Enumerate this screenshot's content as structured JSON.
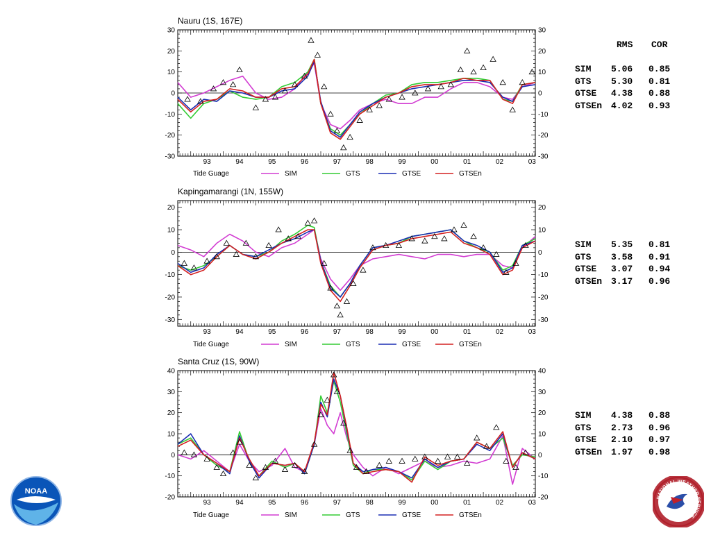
{
  "colors": {
    "SIM": "#d23cd2",
    "GTS": "#33cc33",
    "GTSE": "#1a2db3",
    "GTSEn": "#d42020",
    "tide": "#000000"
  },
  "legend": [
    {
      "key": "tide",
      "label": "Tide Guage"
    },
    {
      "key": "SIM",
      "label": "SIM"
    },
    {
      "key": "GTS",
      "label": "GTS"
    },
    {
      "key": "GTSE",
      "label": "GTSE"
    },
    {
      "key": "GTSEn",
      "label": "GTSEn"
    }
  ],
  "stats_header": {
    "rms": "RMS",
    "cor": "COR"
  },
  "chart_data": [
    {
      "type": "line",
      "title": "Nauru (1S, 167E)",
      "xlim": [
        1992.6,
        2003.6
      ],
      "ylim": [
        -30,
        30
      ],
      "yticks": [
        -30,
        -20,
        -10,
        0,
        10,
        20,
        30
      ],
      "xtick_labels": [
        "93",
        "94",
        "95",
        "96",
        "97",
        "98",
        "99",
        "00",
        "01",
        "02",
        "03"
      ],
      "x": [
        1992.6,
        1993.0,
        1993.4,
        1993.8,
        1994.2,
        1994.6,
        1995.0,
        1995.4,
        1995.8,
        1996.2,
        1996.6,
        1996.8,
        1997.0,
        1997.3,
        1997.6,
        1997.9,
        1998.2,
        1998.6,
        1999.0,
        1999.4,
        1999.8,
        2000.2,
        2000.6,
        2001.0,
        2001.4,
        2001.8,
        2002.2,
        2002.6,
        2002.9,
        2003.2,
        2003.6
      ],
      "series": [
        {
          "name": "SIM",
          "values": [
            5,
            -2,
            0,
            3,
            6,
            8,
            0,
            -3,
            -2,
            2,
            10,
            14,
            -5,
            -15,
            -17,
            -13,
            -8,
            -5,
            -3,
            -5,
            -5,
            -2,
            -2,
            2,
            5,
            5,
            3,
            -2,
            -3,
            3,
            5
          ]
        },
        {
          "name": "GTS",
          "values": [
            -5,
            -12,
            -5,
            -3,
            1,
            -2,
            -3,
            -2,
            3,
            5,
            10,
            16,
            -5,
            -17,
            -20,
            -15,
            -10,
            -5,
            -1,
            0,
            4,
            5,
            5,
            6,
            7,
            7,
            6,
            -3,
            -4,
            4,
            5
          ]
        },
        {
          "name": "GTSE",
          "values": [
            -2,
            -8,
            -3,
            -4,
            1,
            0,
            -2,
            -2,
            1,
            2,
            8,
            15,
            -4,
            -18,
            -21,
            -15,
            -9,
            -5,
            -2,
            0,
            2,
            3,
            4,
            5,
            6,
            6,
            5,
            -2,
            -4,
            3,
            4
          ]
        },
        {
          "name": "GTSEn",
          "values": [
            -3,
            -9,
            -4,
            -3,
            2,
            1,
            -2,
            -2,
            2,
            3,
            9,
            16,
            -5,
            -19,
            -22,
            -16,
            -10,
            -6,
            -2,
            0,
            3,
            4,
            4,
            5,
            7,
            6,
            6,
            -3,
            -5,
            4,
            5
          ]
        }
      ],
      "tide_gauge": {
        "x": [
          1992.9,
          1993.3,
          1993.7,
          1994.0,
          1994.3,
          1994.5,
          1995.0,
          1995.3,
          1995.6,
          1995.9,
          1996.2,
          1996.5,
          1996.7,
          1996.9,
          1997.1,
          1997.3,
          1997.5,
          1997.7,
          1997.9,
          1998.2,
          1998.5,
          1998.8,
          1999.1,
          1999.5,
          1999.9,
          2000.3,
          2000.7,
          2001.0,
          2001.3,
          2001.5,
          2001.7,
          2002.0,
          2002.3,
          2002.6,
          2002.9,
          2003.2,
          2003.5
        ],
        "values": [
          -3,
          -4,
          2,
          5,
          4,
          11,
          -7,
          -3,
          -2,
          1,
          4,
          8,
          25,
          18,
          3,
          -10,
          -18,
          -26,
          -21,
          -13,
          -8,
          -6,
          -3,
          -2,
          0,
          2,
          3,
          4,
          11,
          20,
          10,
          12,
          16,
          5,
          -8,
          5,
          10
        ]
      },
      "stats": [
        {
          "name": "SIM",
          "rms": "5.06",
          "cor": "0.85"
        },
        {
          "name": "GTS",
          "rms": "5.30",
          "cor": "0.81"
        },
        {
          "name": "GTSE",
          "rms": "4.38",
          "cor": "0.88"
        },
        {
          "name": "GTSEn",
          "rms": "4.02",
          "cor": "0.93"
        }
      ]
    },
    {
      "type": "line",
      "title": "Kapingamarangi (1N, 155W)",
      "xlim": [
        1992.6,
        2003.6
      ],
      "ylim": [
        -33,
        23
      ],
      "yticks": [
        -30,
        -20,
        -10,
        0,
        10,
        20
      ],
      "xtick_labels": [
        "93",
        "94",
        "95",
        "96",
        "97",
        "98",
        "99",
        "00",
        "01",
        "02",
        "03"
      ],
      "x": [
        1992.6,
        1993.0,
        1993.4,
        1993.8,
        1994.2,
        1994.6,
        1995.0,
        1995.4,
        1995.8,
        1996.2,
        1996.6,
        1996.8,
        1997.0,
        1997.3,
        1997.6,
        1997.9,
        1998.2,
        1998.6,
        1999.0,
        1999.4,
        1999.8,
        2000.2,
        2000.6,
        2001.0,
        2001.4,
        2001.8,
        2002.2,
        2002.6,
        2002.9,
        2003.2,
        2003.6
      ],
      "series": [
        {
          "name": "SIM",
          "values": [
            3,
            1,
            -2,
            4,
            8,
            5,
            0,
            -2,
            2,
            4,
            8,
            10,
            -3,
            -12,
            -17,
            -12,
            -6,
            -3,
            -2,
            -1,
            -2,
            -3,
            -1,
            -1,
            -2,
            -1,
            -1,
            -6,
            -7,
            2,
            7
          ]
        },
        {
          "name": "GTS",
          "values": [
            -6,
            -8,
            -6,
            -2,
            3,
            -1,
            -2,
            0,
            5,
            8,
            12,
            11,
            -4,
            -15,
            -20,
            -14,
            -6,
            2,
            3,
            4,
            7,
            8,
            9,
            10,
            5,
            2,
            0,
            -8,
            -6,
            3,
            6
          ]
        },
        {
          "name": "GTSE",
          "values": [
            -5,
            -9,
            -7,
            -1,
            3,
            -1,
            -2,
            1,
            4,
            6,
            9,
            10,
            -4,
            -16,
            -20,
            -14,
            -6,
            2,
            3,
            5,
            7,
            8,
            9,
            10,
            5,
            3,
            0,
            -9,
            -7,
            3,
            5
          ]
        },
        {
          "name": "GTSEn",
          "values": [
            -6,
            -10,
            -8,
            -2,
            3,
            -1,
            -3,
            0,
            4,
            7,
            10,
            10,
            -5,
            -17,
            -22,
            -15,
            -7,
            1,
            3,
            4,
            6,
            7,
            8,
            9,
            4,
            2,
            -1,
            -10,
            -8,
            2,
            5
          ]
        }
      ],
      "tide_gauge": {
        "x": [
          1992.8,
          1993.1,
          1993.5,
          1993.8,
          1994.1,
          1994.4,
          1994.7,
          1995.0,
          1995.4,
          1995.7,
          1996.0,
          1996.3,
          1996.6,
          1996.8,
          1997.1,
          1997.3,
          1997.5,
          1997.6,
          1997.8,
          1998.0,
          1998.3,
          1998.6,
          1999.0,
          1999.4,
          1999.8,
          2000.2,
          2000.5,
          2000.8,
          2001.1,
          2001.4,
          2001.7,
          2002.0,
          2002.4,
          2002.7,
          2003.0,
          2003.3
        ],
        "values": [
          -5,
          -7,
          -4,
          -2,
          4,
          -1,
          4,
          -2,
          3,
          10,
          6,
          7,
          13,
          14,
          -5,
          -16,
          -24,
          -28,
          -22,
          -14,
          -8,
          2,
          3,
          3,
          6,
          5,
          7,
          6,
          10,
          12,
          7,
          2,
          -1,
          -9,
          -5,
          3
        ]
      },
      "stats": [
        {
          "name": "SIM",
          "rms": "5.35",
          "cor": "0.81"
        },
        {
          "name": "GTS",
          "rms": "3.58",
          "cor": "0.91"
        },
        {
          "name": "GTSE",
          "rms": "3.07",
          "cor": "0.94"
        },
        {
          "name": "GTSEn",
          "rms": "3.17",
          "cor": "0.96"
        }
      ]
    },
    {
      "type": "line",
      "title": "Santa Cruz (1S, 90W)",
      "xlim": [
        1992.6,
        2003.6
      ],
      "ylim": [
        -20,
        40
      ],
      "yticks": [
        -20,
        -10,
        0,
        10,
        20,
        30,
        40
      ],
      "xtick_labels": [
        "93",
        "94",
        "95",
        "96",
        "97",
        "98",
        "99",
        "00",
        "01",
        "02",
        "03"
      ],
      "x": [
        1992.6,
        1993.0,
        1993.4,
        1993.8,
        1994.2,
        1994.5,
        1994.8,
        1995.1,
        1995.5,
        1995.9,
        1996.2,
        1996.5,
        1996.8,
        1997.0,
        1997.2,
        1997.4,
        1997.6,
        1997.8,
        1998.0,
        1998.3,
        1998.6,
        1999.0,
        1999.4,
        1999.8,
        2000.2,
        2000.6,
        2001.0,
        2001.4,
        2001.8,
        2002.2,
        2002.6,
        2002.9,
        2003.2,
        2003.6
      ],
      "series": [
        {
          "name": "SIM",
          "values": [
            0,
            -2,
            2,
            -3,
            -8,
            5,
            -3,
            -8,
            -5,
            3,
            -6,
            -8,
            5,
            22,
            14,
            10,
            20,
            8,
            0,
            -6,
            -10,
            -6,
            -9,
            -6,
            -3,
            -6,
            -5,
            -3,
            -4,
            -2,
            9,
            -14,
            3,
            -2
          ]
        },
        {
          "name": "GTS",
          "values": [
            5,
            8,
            0,
            -5,
            -8,
            11,
            -3,
            -10,
            -3,
            -6,
            -4,
            -9,
            5,
            28,
            20,
            35,
            25,
            10,
            -5,
            -9,
            -7,
            -7,
            -8,
            -12,
            -3,
            -7,
            -3,
            -2,
            6,
            3,
            8,
            -5,
            0,
            -1
          ]
        },
        {
          "name": "GTSE",
          "values": [
            5,
            10,
            0,
            -4,
            -9,
            9,
            -3,
            -11,
            -4,
            -5,
            -4,
            -9,
            5,
            25,
            18,
            36,
            28,
            12,
            -4,
            -8,
            -7,
            -6,
            -8,
            -11,
            -2,
            -6,
            -3,
            -2,
            5,
            2,
            10,
            -6,
            1,
            -2
          ]
        },
        {
          "name": "GTSEn",
          "values": [
            4,
            7,
            0,
            -4,
            -8,
            8,
            -2,
            -10,
            -4,
            -5,
            -4,
            -8,
            6,
            24,
            19,
            39,
            28,
            13,
            -4,
            -9,
            -8,
            -7,
            -8,
            -13,
            -1,
            -5,
            -3,
            -2,
            6,
            3,
            11,
            -6,
            1,
            -2
          ]
        }
      ],
      "tide_gauge": {
        "x": [
          1992.8,
          1993.1,
          1993.5,
          1993.8,
          1994.0,
          1994.3,
          1994.5,
          1994.8,
          1995.0,
          1995.3,
          1995.6,
          1995.9,
          1996.2,
          1996.5,
          1996.8,
          1997.0,
          1997.2,
          1997.4,
          1997.5,
          1997.7,
          1997.9,
          1998.1,
          1998.4,
          1998.8,
          1999.1,
          1999.5,
          1999.9,
          2000.2,
          2000.6,
          2000.9,
          2001.2,
          2001.5,
          2001.8,
          2002.1,
          2002.4,
          2002.7,
          2003.0,
          2003.3
        ],
        "values": [
          1,
          0,
          -2,
          -6,
          -9,
          1,
          6,
          -5,
          -11,
          -6,
          -3,
          -7,
          -5,
          -8,
          5,
          19,
          26,
          38,
          30,
          15,
          2,
          -6,
          -8,
          -5,
          -3,
          -3,
          -2,
          -1,
          -3,
          -1,
          -1,
          -4,
          8,
          4,
          13,
          -3,
          -6,
          1
        ]
      },
      "stats": [
        {
          "name": "SIM",
          "rms": "4.38",
          "cor": "0.88"
        },
        {
          "name": "GTS",
          "rms": "2.73",
          "cor": "0.96"
        },
        {
          "name": "GTSE",
          "rms": "2.10",
          "cor": "0.97"
        },
        {
          "name": "GTSEn",
          "rms": "1.97",
          "cor": "0.98"
        }
      ]
    }
  ],
  "logos": {
    "noaa_text": "NOAA",
    "nws_ring_text": "NATIONAL WEATHER SERVICE"
  }
}
